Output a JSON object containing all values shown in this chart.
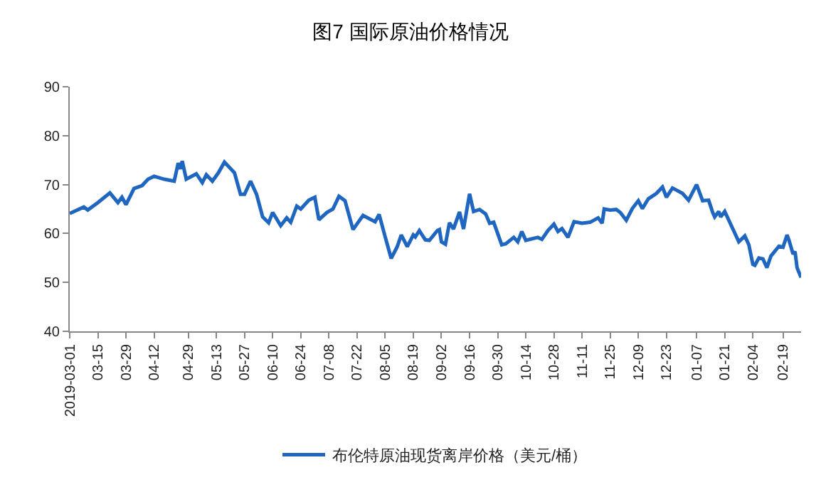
{
  "chart_data": {
    "type": "line",
    "title": "图7 国际原油价格情况",
    "x": [
      "2019-03-01",
      "2019-03-08",
      "2019-03-10",
      "2019-03-15",
      "2019-03-21",
      "2019-03-25",
      "2019-03-27",
      "2019-03-29",
      "2019-04-02",
      "2019-04-06",
      "2019-04-09",
      "2019-04-12",
      "2019-04-17",
      "2019-04-22",
      "2019-04-24",
      "2019-04-25",
      "2019-04-26",
      "2019-04-28",
      "2019-05-03",
      "2019-05-06",
      "2019-05-08",
      "2019-05-11",
      "2019-05-14",
      "2019-05-17",
      "2019-05-22",
      "2019-05-25",
      "2019-05-27",
      "2019-05-30",
      "2019-06-02",
      "2019-06-05",
      "2019-06-08",
      "2019-06-10",
      "2019-06-14",
      "2019-06-17",
      "2019-06-19",
      "2019-06-22",
      "2019-06-24",
      "2019-06-28",
      "2019-07-01",
      "2019-07-03",
      "2019-07-07",
      "2019-07-10",
      "2019-07-13",
      "2019-07-16",
      "2019-07-20",
      "2019-07-25",
      "2019-07-31",
      "2019-08-02",
      "2019-08-05",
      "2019-08-08",
      "2019-08-11",
      "2019-08-13",
      "2019-08-16",
      "2019-08-19",
      "2019-08-20",
      "2019-08-22",
      "2019-08-25",
      "2019-08-27",
      "2019-08-31",
      "2019-09-01",
      "2019-09-02",
      "2019-09-04",
      "2019-09-06",
      "2019-09-08",
      "2019-09-11",
      "2019-09-13",
      "2019-09-16",
      "2019-09-18",
      "2019-09-21",
      "2019-09-24",
      "2019-09-26",
      "2019-09-28",
      "2019-10-02",
      "2019-10-04",
      "2019-10-08",
      "2019-10-10",
      "2019-10-12",
      "2019-10-14",
      "2019-10-20",
      "2019-10-22",
      "2019-10-25",
      "2019-10-28",
      "2019-10-30",
      "2019-11-01",
      "2019-11-04",
      "2019-11-07",
      "2019-11-11",
      "2019-11-15",
      "2019-11-19",
      "2019-11-21",
      "2019-11-22",
      "2019-11-25",
      "2019-11-28",
      "2019-11-30",
      "2019-12-03",
      "2019-12-06",
      "2019-12-09",
      "2019-12-11",
      "2019-12-14",
      "2019-12-18",
      "2019-12-21",
      "2019-12-23",
      "2019-12-26",
      "2019-12-31",
      "2020-01-03",
      "2020-01-07",
      "2020-01-10",
      "2020-01-13",
      "2020-01-15",
      "2020-01-16",
      "2020-01-18",
      "2020-01-19",
      "2020-01-21",
      "2020-01-26",
      "2020-01-28",
      "2020-01-31",
      "2020-02-02",
      "2020-02-04",
      "2020-02-05",
      "2020-02-07",
      "2020-02-09",
      "2020-02-11",
      "2020-02-13",
      "2020-02-17",
      "2020-02-19",
      "2020-02-21",
      "2020-02-22",
      "2020-02-24",
      "2020-02-25",
      "2020-02-26",
      "2020-02-28"
    ],
    "series": [
      {
        "name": "布伦特原油现货离岸价格（美元/桶）",
        "color": "#1f66c0",
        "values": [
          64.1,
          65.4,
          64.8,
          66.3,
          68.3,
          66.3,
          67.4,
          65.9,
          69.2,
          69.8,
          71.1,
          71.7,
          71.1,
          70.7,
          74.4,
          73.2,
          74.8,
          71.1,
          72.2,
          70.4,
          72.0,
          70.7,
          72.4,
          74.6,
          72.4,
          68.0,
          68.0,
          70.7,
          68.0,
          63.4,
          62.2,
          64.3,
          61.6,
          63.2,
          62.3,
          65.6,
          65.0,
          66.8,
          67.4,
          62.8,
          64.3,
          65.0,
          67.6,
          66.7,
          60.8,
          63.7,
          62.4,
          63.9,
          59.3,
          54.9,
          57.3,
          59.7,
          57.3,
          59.7,
          59.3,
          60.6,
          58.7,
          58.6,
          60.6,
          60.8,
          58.3,
          57.8,
          62.2,
          60.9,
          64.4,
          60.9,
          68.1,
          64.5,
          64.9,
          64.0,
          62.1,
          62.3,
          57.7,
          57.9,
          59.2,
          58.3,
          60.4,
          58.6,
          59.2,
          58.8,
          60.6,
          61.9,
          60.4,
          61.0,
          59.2,
          62.4,
          62.1,
          62.3,
          63.2,
          62.1,
          65.0,
          64.8,
          64.9,
          64.3,
          62.7,
          65.1,
          66.7,
          65.1,
          67.1,
          68.2,
          69.5,
          67.4,
          69.3,
          68.2,
          66.8,
          70.0,
          66.7,
          66.8,
          64.3,
          63.4,
          64.5,
          63.4,
          64.5,
          60.1,
          58.3,
          59.5,
          57.7,
          53.7,
          53.5,
          55.0,
          54.8,
          53.0,
          55.4,
          57.4,
          57.2,
          59.7,
          58.6,
          55.8,
          56.3,
          53.0,
          51.0
        ]
      }
    ],
    "xlim": [
      "2019-03-01",
      "2020-02-28"
    ],
    "xticks": [
      {
        "value": "2019-03-01",
        "label": "2019-03-01"
      },
      {
        "value": "2019-03-15",
        "label": "03-15"
      },
      {
        "value": "2019-03-29",
        "label": "03-29"
      },
      {
        "value": "2019-04-12",
        "label": "04-12"
      },
      {
        "value": "2019-04-29",
        "label": "04-29"
      },
      {
        "value": "2019-05-13",
        "label": "05-13"
      },
      {
        "value": "2019-05-27",
        "label": "05-27"
      },
      {
        "value": "2019-06-10",
        "label": "06-10"
      },
      {
        "value": "2019-06-24",
        "label": "06-24"
      },
      {
        "value": "2019-07-08",
        "label": "07-08"
      },
      {
        "value": "2019-07-22",
        "label": "07-22"
      },
      {
        "value": "2019-08-05",
        "label": "08-05"
      },
      {
        "value": "2019-08-19",
        "label": "08-19"
      },
      {
        "value": "2019-09-02",
        "label": "09-02"
      },
      {
        "value": "2019-09-16",
        "label": "09-16"
      },
      {
        "value": "2019-09-30",
        "label": "09-30"
      },
      {
        "value": "2019-10-14",
        "label": "10-14"
      },
      {
        "value": "2019-10-28",
        "label": "10-28"
      },
      {
        "value": "2019-11-11",
        "label": "11-11"
      },
      {
        "value": "2019-11-25",
        "label": "11-25"
      },
      {
        "value": "2019-12-09",
        "label": "12-09"
      },
      {
        "value": "2019-12-23",
        "label": "12-23"
      },
      {
        "value": "2020-01-07",
        "label": "01-07"
      },
      {
        "value": "2020-01-21",
        "label": "01-21"
      },
      {
        "value": "2020-02-04",
        "label": "02-04"
      },
      {
        "value": "2020-02-19",
        "label": "02-19"
      }
    ],
    "ylim": [
      40,
      90
    ],
    "yticks": [
      40,
      50,
      60,
      70,
      80,
      90
    ],
    "grid": false,
    "legend": "bottom",
    "marker": "none",
    "line_style": "solid"
  }
}
